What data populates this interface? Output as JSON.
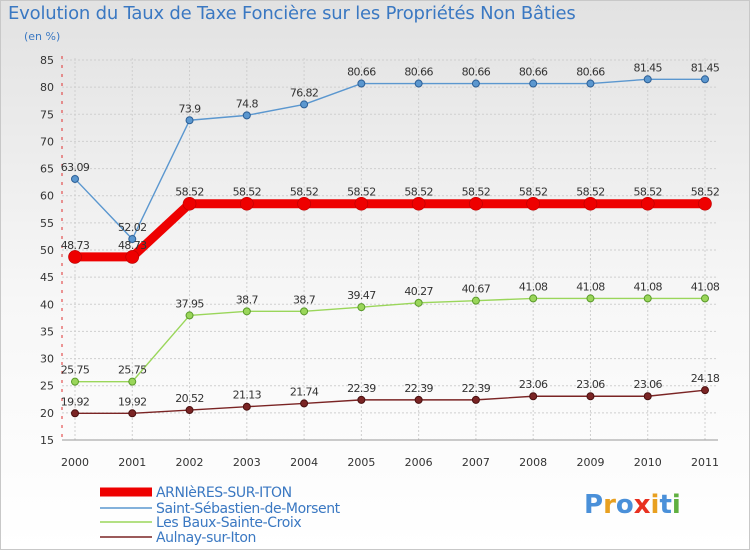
{
  "chart_data": {
    "type": "line",
    "title": "Evolution du Taux de Taxe Foncière sur les Propriétés Non Bâties",
    "ylabel": "(en %)",
    "xlabel": "",
    "ylim": [
      15,
      85
    ],
    "yticks": [
      15,
      20,
      25,
      30,
      35,
      40,
      45,
      50,
      55,
      60,
      65,
      70,
      75,
      80,
      85
    ],
    "categories": [
      "2000",
      "2001",
      "2002",
      "2003",
      "2004",
      "2005",
      "2006",
      "2007",
      "2008",
      "2009",
      "2010",
      "2011"
    ],
    "grid": true,
    "legend_position": "bottom-left",
    "series": [
      {
        "name": "ARNIèRES-SUR-ITON",
        "color": "#ee0000",
        "values": [
          48.73,
          48.73,
          58.52,
          58.52,
          58.52,
          58.52,
          58.52,
          58.52,
          58.52,
          58.52,
          58.52,
          58.52
        ],
        "labels": [
          "48.73",
          "48.73",
          "58.52",
          "58.52",
          "58.52",
          "58.52",
          "58.52",
          "58.52",
          "58.52",
          "58.52",
          "58.52",
          "58.52"
        ]
      },
      {
        "name": "Saint-Sébastien-de-Morsent",
        "color": "#5b97cf",
        "values": [
          63.09,
          52.02,
          73.9,
          74.8,
          76.82,
          80.66,
          80.66,
          80.66,
          80.66,
          80.66,
          81.45,
          81.45
        ],
        "labels": [
          "63.09",
          "52.02",
          "73.9",
          "74.8",
          "76.82",
          "80.66",
          "80.66",
          "80.66",
          "80.66",
          "80.66",
          "81.45",
          "81.45"
        ]
      },
      {
        "name": "Les Baux-Sainte-Croix",
        "color": "#9ad65a",
        "values": [
          25.75,
          25.75,
          37.95,
          38.7,
          38.7,
          39.47,
          40.27,
          40.67,
          41.08,
          41.08,
          41.08,
          41.08
        ],
        "labels": [
          "25.75",
          "25.75",
          "37.95",
          "38.7",
          "38.7",
          "39.47",
          "40.27",
          "40.67",
          "41.08",
          "41.08",
          "41.08",
          "41.08"
        ]
      },
      {
        "name": "Aulnay-sur-Iton",
        "color": "#7a2424",
        "values": [
          19.92,
          19.92,
          20.52,
          21.13,
          21.74,
          22.39,
          22.39,
          22.39,
          23.06,
          23.06,
          23.06,
          24.18
        ],
        "labels": [
          "19.92",
          "19.92",
          "20.52",
          "21.13",
          "21.74",
          "22.39",
          "22.39",
          "22.39",
          "23.06",
          "23.06",
          "23.06",
          "24.18"
        ]
      }
    ]
  },
  "logo": {
    "letters": [
      "P",
      "r",
      "o",
      "x",
      "i",
      "t",
      "i"
    ],
    "colors": [
      "#4a90d9",
      "#e8a020",
      "#4a90d9",
      "#e83020",
      "#e8a020",
      "#4a90d9",
      "#60b040"
    ]
  }
}
